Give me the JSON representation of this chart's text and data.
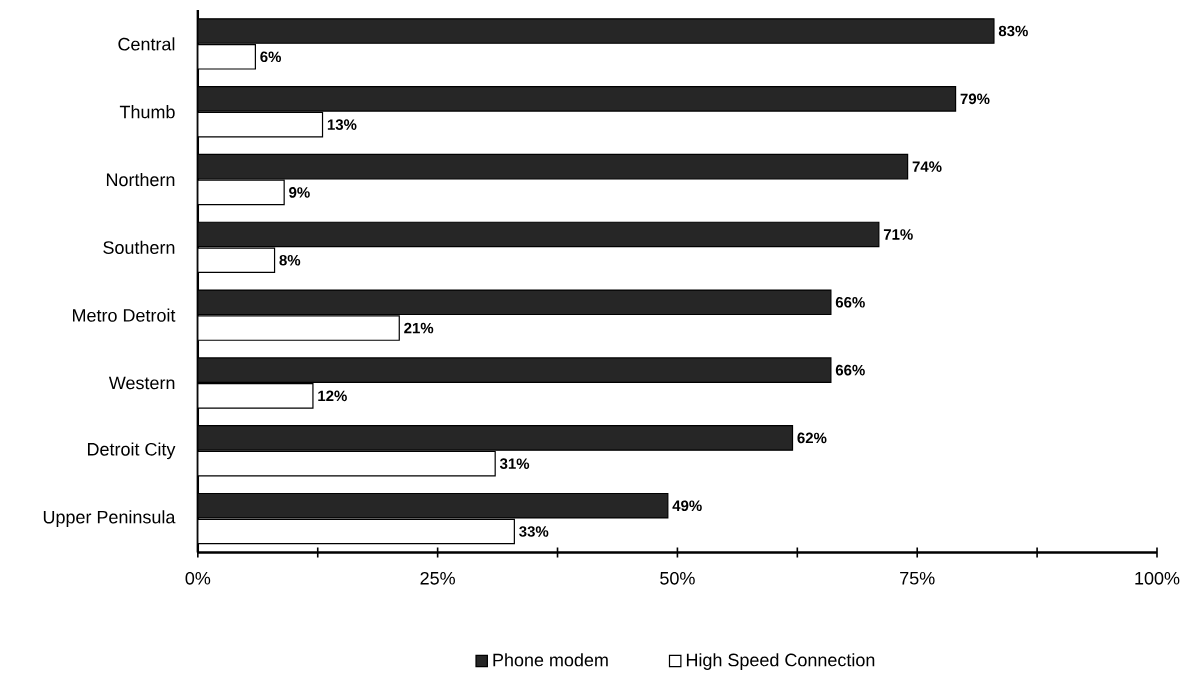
{
  "chart_data": {
    "type": "bar",
    "orientation": "horizontal",
    "categories": [
      "Central",
      "Thumb",
      "Northern",
      "Southern",
      "Metro Detroit",
      "Western",
      "Detroit City",
      "Upper Peninsula"
    ],
    "series": [
      {
        "name": "Phone modem",
        "color": "#262626",
        "values": [
          83,
          79,
          74,
          71,
          66,
          66,
          62,
          49
        ],
        "value_labels": [
          "83%",
          "79%",
          "74%",
          "71%",
          "66%",
          "66%",
          "62%",
          "49%"
        ]
      },
      {
        "name": "High Speed Connection",
        "color": "#ffffff",
        "values": [
          6,
          13,
          9,
          8,
          21,
          12,
          31,
          33
        ],
        "value_labels": [
          "6%",
          "13%",
          "9%",
          "8%",
          "21%",
          "12%",
          "31%",
          "33%"
        ]
      }
    ],
    "xlim": [
      0,
      100
    ],
    "xticks": [
      {
        "value": 0,
        "label": "0%"
      },
      {
        "value": 12.5,
        "label": null
      },
      {
        "value": 25,
        "label": "25%"
      },
      {
        "value": 37.5,
        "label": null
      },
      {
        "value": 50,
        "label": "50%"
      },
      {
        "value": 62.5,
        "label": null
      },
      {
        "value": 75,
        "label": "75%"
      },
      {
        "value": 87.5,
        "label": null
      },
      {
        "value": 100,
        "label": "100%"
      }
    ],
    "grid": false,
    "legend": "bottom"
  }
}
